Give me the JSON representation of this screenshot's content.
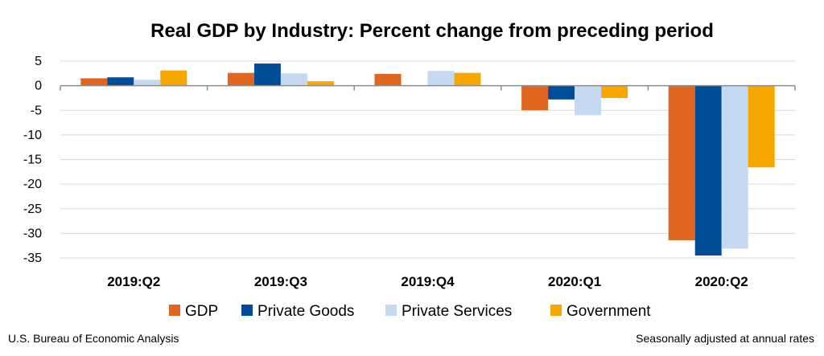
{
  "chart_data": {
    "type": "bar",
    "title": "Real GDP by Industry:  Percent change from preceding period",
    "categories": [
      "2019:Q2",
      "2019:Q3",
      "2019:Q4",
      "2020:Q1",
      "2020:Q2"
    ],
    "series": [
      {
        "name": "GDP",
        "color": "#e06620",
        "values": [
          1.5,
          2.6,
          2.4,
          -5.0,
          -31.4
        ]
      },
      {
        "name": "Private Goods",
        "color": "#004c97",
        "values": [
          1.7,
          4.5,
          0.0,
          -2.8,
          -34.5
        ]
      },
      {
        "name": "Private Services",
        "color": "#c5d9f1",
        "values": [
          1.2,
          2.5,
          3.0,
          -6.0,
          -33.1
        ]
      },
      {
        "name": "Government",
        "color": "#f6a800",
        "values": [
          3.1,
          0.9,
          2.6,
          -2.5,
          -16.6
        ]
      }
    ],
    "yticks": [
      5,
      0,
      -5,
      -10,
      -15,
      -20,
      -25,
      -30,
      -35
    ],
    "ylim": [
      -35,
      5
    ],
    "grid": true,
    "legend_position": "bottom",
    "footer_left": "U.S. Bureau of Economic Analysis",
    "footer_right": "Seasonally adjusted at annual rates"
  }
}
